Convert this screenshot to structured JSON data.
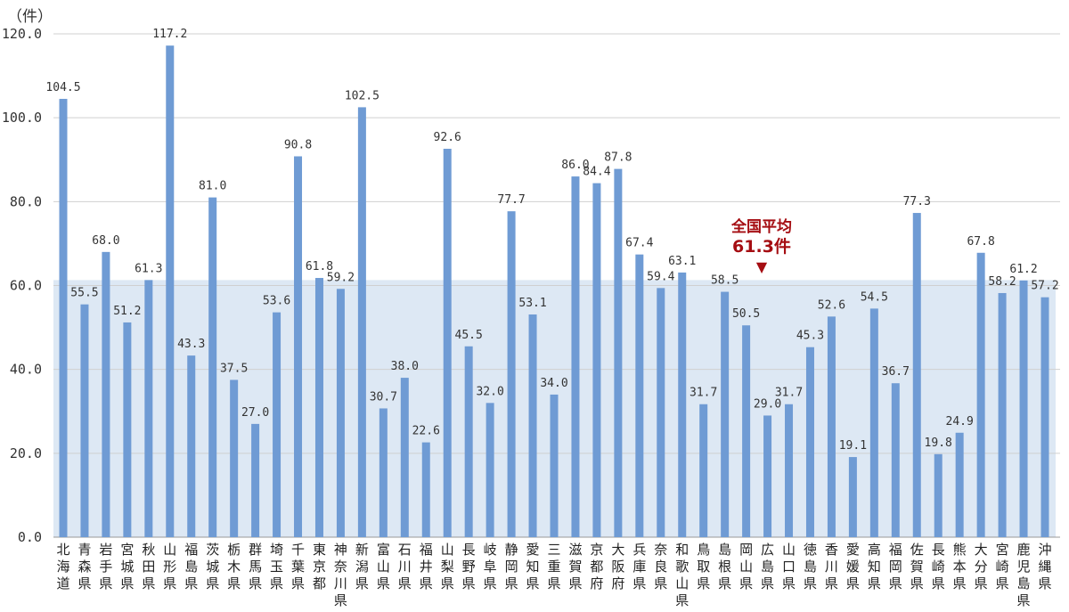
{
  "chart_data": {
    "type": "bar",
    "unit_label": "（件）",
    "ylim": [
      0,
      120
    ],
    "yticks": [
      "0.0",
      "20.0",
      "40.0",
      "60.0",
      "80.0",
      "100.0",
      "120.0"
    ],
    "grid": true,
    "bar_color": "#6f9bd4",
    "band_color": "#dde8f4",
    "categories": [
      "北海道",
      "青森県",
      "岩手県",
      "宮城県",
      "秋田県",
      "山形県",
      "福島県",
      "茨城県",
      "栃木県",
      "群馬県",
      "埼玉県",
      "千葉県",
      "東京都",
      "神奈川県",
      "新潟県",
      "富山県",
      "石川県",
      "福井県",
      "山梨県",
      "長野県",
      "岐阜県",
      "静岡県",
      "愛知県",
      "三重県",
      "滋賀県",
      "京都府",
      "大阪府",
      "兵庫県",
      "奈良県",
      "和歌山県",
      "鳥取県",
      "島根県",
      "岡山県",
      "広島県",
      "山口県",
      "徳島県",
      "香川県",
      "愛媛県",
      "高知県",
      "福岡県",
      "佐賀県",
      "長崎県",
      "熊本県",
      "大分県",
      "宮崎県",
      "鹿児島県",
      "沖縄県"
    ],
    "values": [
      104.5,
      55.5,
      68.0,
      51.2,
      61.3,
      117.2,
      43.3,
      81.0,
      37.5,
      27.0,
      53.6,
      90.8,
      61.8,
      59.2,
      102.5,
      30.7,
      38.0,
      22.6,
      92.6,
      45.5,
      32.0,
      77.7,
      53.1,
      34.0,
      86.0,
      84.4,
      87.8,
      67.4,
      59.4,
      63.1,
      31.7,
      58.5,
      50.5,
      29.0,
      31.7,
      45.3,
      52.6,
      19.1,
      54.5,
      36.7,
      77.3,
      19.8,
      24.9,
      67.8,
      58.2,
      61.2,
      57.2
    ],
    "average": {
      "value": 61.3,
      "label": "全国平均",
      "value_label": "61.3件",
      "color": "#a50d12"
    }
  }
}
